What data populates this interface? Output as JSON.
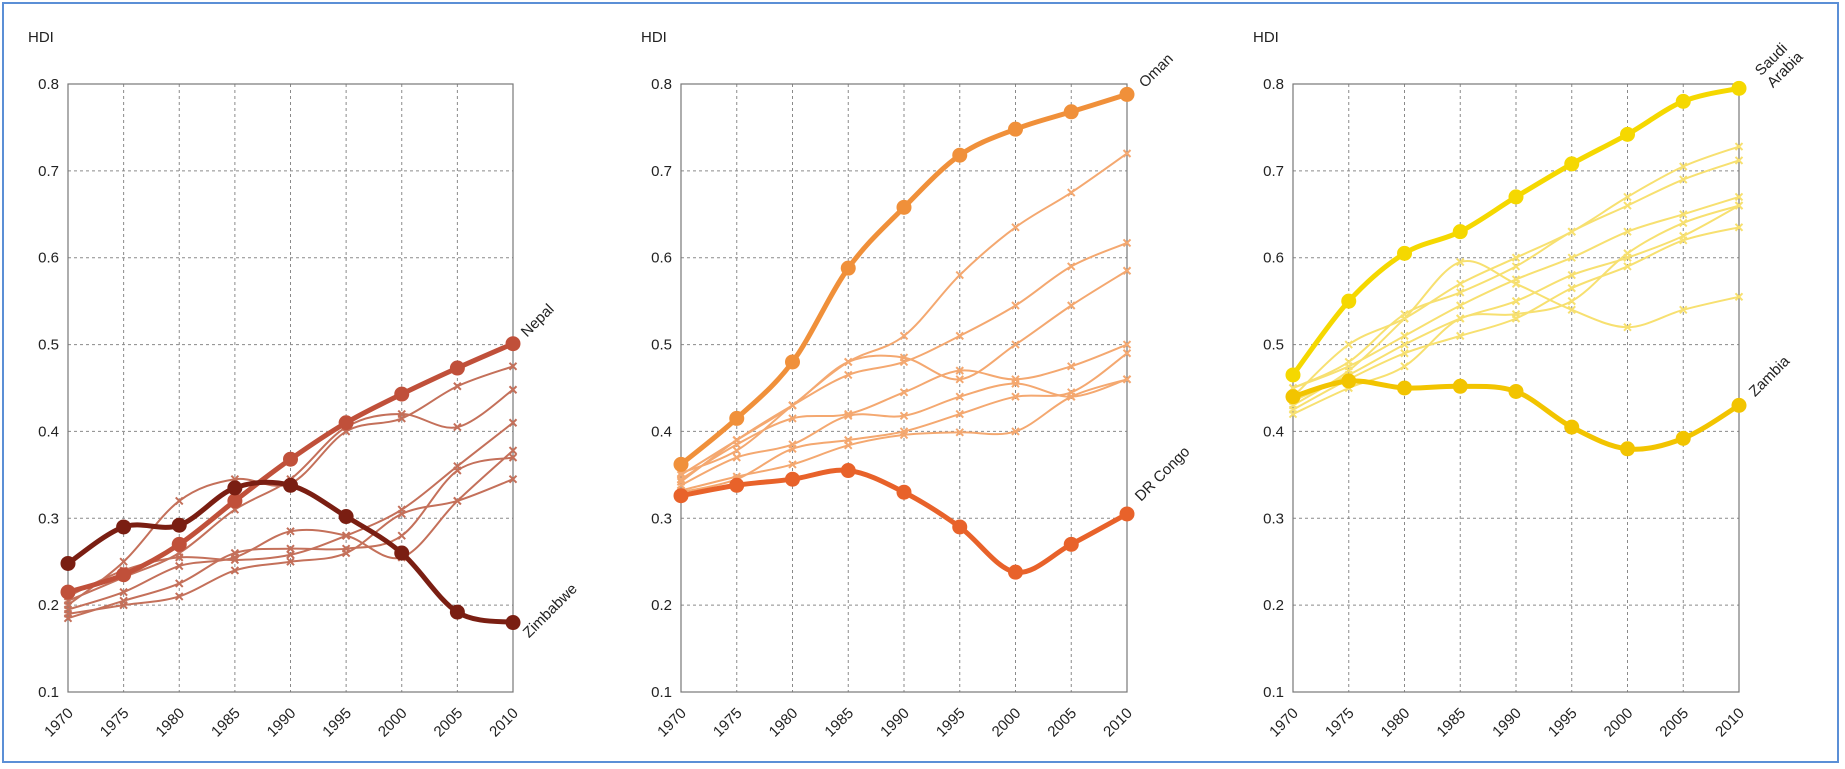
{
  "chart_data": [
    {
      "type": "line",
      "ylabel": "HDI",
      "ylim": [
        0.1,
        0.8
      ],
      "yticks": [
        0.1,
        0.2,
        0.3,
        0.4,
        0.5,
        0.6,
        0.7,
        0.8
      ],
      "x": [
        1970,
        1975,
        1980,
        1985,
        1990,
        1995,
        2000,
        2005,
        2010
      ],
      "grid": true,
      "series": [
        {
          "name": "Nepal",
          "color": "#c0503a",
          "highlight": true,
          "values": [
            0.215,
            0.235,
            0.27,
            0.32,
            0.368,
            0.41,
            0.443,
            0.473,
            0.501
          ]
        },
        {
          "name": "Zimbabwe",
          "color": "#7a1e12",
          "highlight": true,
          "values": [
            0.248,
            0.29,
            0.292,
            0.335,
            0.338,
            0.302,
            0.26,
            0.192,
            0.18
          ]
        },
        {
          "name": "",
          "color": "#c4705a",
          "values": [
            0.2,
            0.25,
            0.32,
            0.345,
            0.34,
            0.4,
            0.415,
            0.452,
            0.475
          ]
        },
        {
          "name": "",
          "color": "#c4705a",
          "values": [
            0.205,
            0.232,
            0.26,
            0.31,
            0.345,
            0.405,
            0.42,
            0.405,
            0.448
          ]
        },
        {
          "name": "",
          "color": "#c4705a",
          "values": [
            0.21,
            0.24,
            0.255,
            0.252,
            0.258,
            0.28,
            0.31,
            0.36,
            0.41
          ]
        },
        {
          "name": "",
          "color": "#c4705a",
          "values": [
            0.195,
            0.215,
            0.245,
            0.255,
            0.285,
            0.28,
            0.255,
            0.32,
            0.378
          ]
        },
        {
          "name": "",
          "color": "#c4705a",
          "values": [
            0.185,
            0.205,
            0.225,
            0.26,
            0.265,
            0.265,
            0.28,
            0.355,
            0.37
          ]
        },
        {
          "name": "",
          "color": "#c4705a",
          "values": [
            0.19,
            0.2,
            0.21,
            0.24,
            0.25,
            0.26,
            0.305,
            0.32,
            0.345
          ]
        }
      ]
    },
    {
      "type": "line",
      "ylabel": "HDI",
      "ylim": [
        0.1,
        0.8
      ],
      "yticks": [
        0.1,
        0.2,
        0.3,
        0.4,
        0.5,
        0.6,
        0.7,
        0.8
      ],
      "x": [
        1970,
        1975,
        1980,
        1985,
        1990,
        1995,
        2000,
        2005,
        2010
      ],
      "grid": true,
      "series": [
        {
          "name": "Oman",
          "color": "#f0903a",
          "highlight": true,
          "values": [
            0.362,
            0.415,
            0.48,
            0.588,
            0.658,
            0.718,
            0.748,
            0.768,
            0.788
          ]
        },
        {
          "name": "DR Congo",
          "color": "#e8622a",
          "highlight": true,
          "values": [
            0.326,
            0.338,
            0.345,
            0.355,
            0.33,
            0.29,
            0.238,
            0.27,
            0.305
          ]
        },
        {
          "name": "",
          "color": "#f4a870",
          "values": [
            0.352,
            0.378,
            0.43,
            0.48,
            0.51,
            0.58,
            0.635,
            0.675,
            0.72
          ]
        },
        {
          "name": "",
          "color": "#f4a870",
          "values": [
            0.342,
            0.39,
            0.43,
            0.465,
            0.48,
            0.51,
            0.545,
            0.59,
            0.617
          ]
        },
        {
          "name": "",
          "color": "#f4a870",
          "values": [
            0.35,
            0.39,
            0.43,
            0.48,
            0.485,
            0.46,
            0.5,
            0.545,
            0.585
          ]
        },
        {
          "name": "",
          "color": "#f4a870",
          "values": [
            0.345,
            0.385,
            0.415,
            0.42,
            0.445,
            0.47,
            0.46,
            0.475,
            0.5
          ]
        },
        {
          "name": "",
          "color": "#f4a870",
          "values": [
            0.338,
            0.37,
            0.385,
            0.418,
            0.418,
            0.44,
            0.455,
            0.44,
            0.46
          ]
        },
        {
          "name": "",
          "color": "#f4a870",
          "values": [
            0.33,
            0.345,
            0.38,
            0.39,
            0.4,
            0.42,
            0.44,
            0.445,
            0.49
          ]
        },
        {
          "name": "",
          "color": "#f4a870",
          "values": [
            0.332,
            0.348,
            0.362,
            0.384,
            0.396,
            0.399,
            0.4,
            0.44,
            0.46
          ]
        }
      ]
    },
    {
      "type": "line",
      "ylabel": "HDI",
      "ylim": [
        0.1,
        0.8
      ],
      "yticks": [
        0.1,
        0.2,
        0.3,
        0.4,
        0.5,
        0.6,
        0.7,
        0.8
      ],
      "x": [
        1970,
        1975,
        1980,
        1985,
        1990,
        1995,
        2000,
        2005,
        2010
      ],
      "grid": true,
      "series": [
        {
          "name": "Saudi Arabia",
          "color": "#f5d800",
          "highlight": true,
          "values": [
            0.465,
            0.55,
            0.605,
            0.63,
            0.67,
            0.708,
            0.742,
            0.78,
            0.795
          ]
        },
        {
          "name": "Zambia",
          "color": "#f2c400",
          "highlight": true,
          "values": [
            0.44,
            0.458,
            0.45,
            0.452,
            0.446,
            0.405,
            0.38,
            0.392,
            0.43
          ]
        },
        {
          "name": "",
          "color": "#f7e070",
          "values": [
            0.44,
            0.5,
            0.53,
            0.57,
            0.6,
            0.63,
            0.67,
            0.705,
            0.728
          ]
        },
        {
          "name": "",
          "color": "#f7e070",
          "values": [
            0.45,
            0.48,
            0.535,
            0.56,
            0.59,
            0.63,
            0.66,
            0.69,
            0.712
          ]
        },
        {
          "name": "",
          "color": "#f7e070",
          "values": [
            0.43,
            0.47,
            0.53,
            0.595,
            0.57,
            0.54,
            0.52,
            0.54,
            0.555
          ]
        },
        {
          "name": "",
          "color": "#f7e070",
          "values": [
            0.45,
            0.475,
            0.51,
            0.545,
            0.575,
            0.6,
            0.63,
            0.65,
            0.67
          ]
        },
        {
          "name": "",
          "color": "#f7e070",
          "values": [
            0.435,
            0.465,
            0.5,
            0.53,
            0.55,
            0.58,
            0.6,
            0.625,
            0.66
          ]
        },
        {
          "name": "",
          "color": "#f7e070",
          "values": [
            0.425,
            0.46,
            0.49,
            0.51,
            0.53,
            0.565,
            0.59,
            0.62,
            0.635
          ]
        },
        {
          "name": "",
          "color": "#f7e070",
          "values": [
            0.42,
            0.45,
            0.475,
            0.53,
            0.535,
            0.55,
            0.605,
            0.64,
            0.66
          ]
        }
      ]
    }
  ]
}
